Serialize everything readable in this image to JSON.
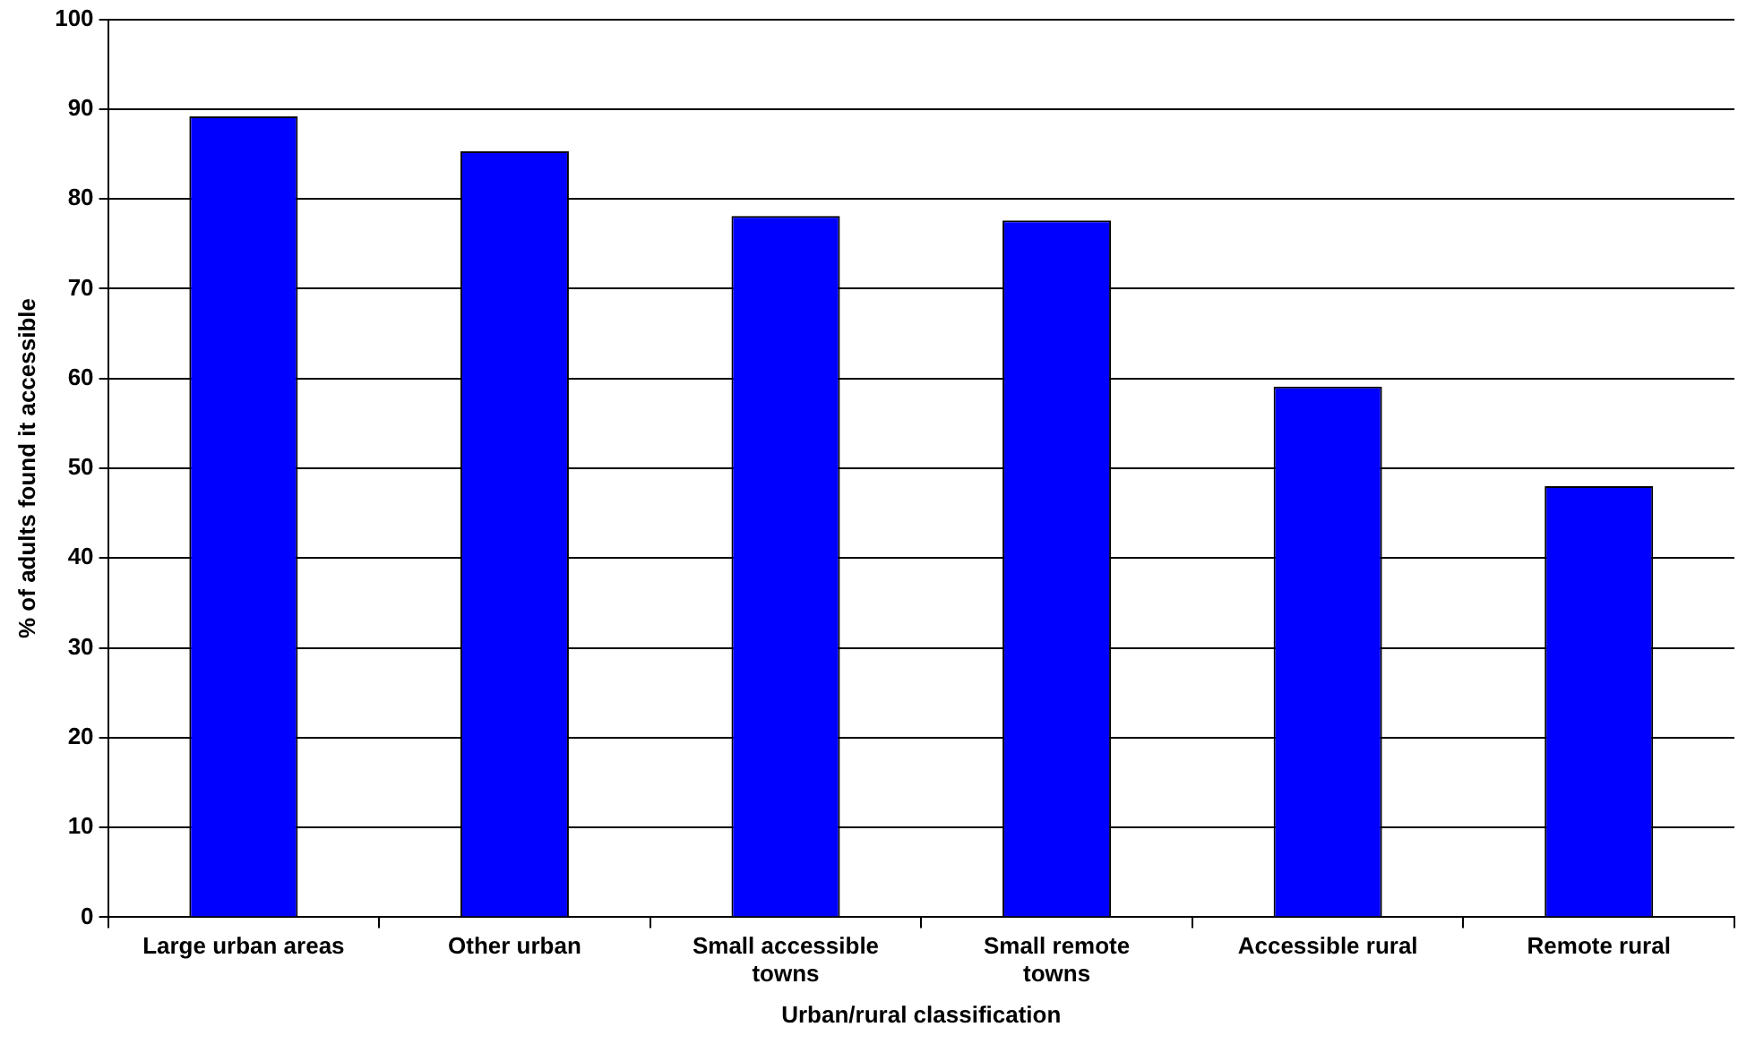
{
  "chart_data": {
    "type": "bar",
    "xlabel": "Urban/rural classification",
    "ylabel": "% of adults found it accessible",
    "categories": [
      "Large urban areas",
      "Other urban",
      "Small accessible towns",
      "Small remote towns",
      "Accessible rural",
      "Remote rural"
    ],
    "values": [
      89.2,
      85.3,
      78.1,
      77.6,
      59.1,
      48.0
    ],
    "color": "#0000ff",
    "ylim": [
      0,
      100
    ],
    "yticks": [
      0,
      10,
      20,
      30,
      40,
      50,
      60,
      70,
      80,
      90,
      100
    ],
    "grid": "y",
    "legend": false
  }
}
